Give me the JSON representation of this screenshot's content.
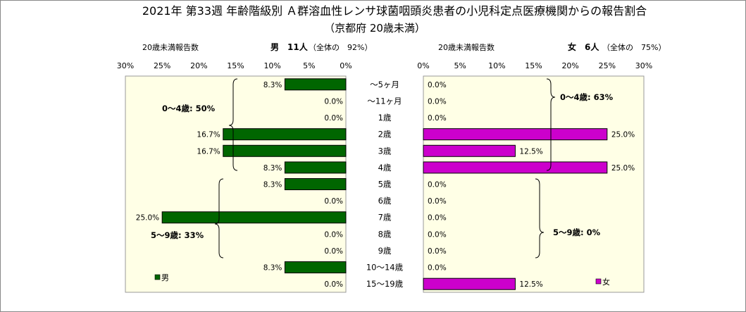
{
  "title": "2021年 第33週 年齢階級別 Ａ群溶血性レンサ球菌咽頭炎患者の小児科定点医療機関からの報告割合",
  "subtitle": "（京都府 20歳未満）",
  "categories": [
    "～5ヶ月",
    "～11ヶ月",
    "1歳",
    "2歳",
    "3歳",
    "4歳",
    "5歳",
    "6歳",
    "7歳",
    "8歳",
    "9歳",
    "10～14歳",
    "15～19歳"
  ],
  "male": {
    "header_label": "20歳未満報告数",
    "header_count": "男　11人",
    "header_share": "（全体の　92%）",
    "legend": "男",
    "color": "#006600",
    "values": [
      8.3,
      0,
      0,
      16.7,
      16.7,
      8.3,
      8.3,
      0,
      25.0,
      0,
      0,
      8.3,
      0
    ],
    "value_labels": [
      "8.3%",
      "0.0%",
      "0.0%",
      "16.7%",
      "16.7%",
      "8.3%",
      "8.3%",
      "0.0%",
      "25.0%",
      "0.0%",
      "0.0%",
      "8.3%",
      "0.0%"
    ],
    "group_0_4": "0～4歳: 50%",
    "group_5_9": "5～9歳: 33%"
  },
  "female": {
    "header_label": "20歳未満報告数",
    "header_count": "女　6人",
    "header_share": "（全体の　75%）",
    "legend": "女",
    "color": "#cc00cc",
    "values": [
      0,
      0,
      0,
      25.0,
      12.5,
      25.0,
      0,
      0,
      0,
      0,
      0,
      0,
      12.5
    ],
    "value_labels": [
      "0.0%",
      "0.0%",
      "0.0%",
      "25.0%",
      "12.5%",
      "25.0%",
      "0.0%",
      "0.0%",
      "0.0%",
      "0.0%",
      "0.0%",
      "0.0%",
      "12.5%"
    ],
    "group_0_4": "0～4歳: 63%",
    "group_5_9": "5～9歳: 0%"
  },
  "chart_data": {
    "type": "bar",
    "orientation": "horizontal",
    "categories": [
      "～5ヶ月",
      "～11ヶ月",
      "1歳",
      "2歳",
      "3歳",
      "4歳",
      "5歳",
      "6歳",
      "7歳",
      "8歳",
      "9歳",
      "10～14歳",
      "15～19歳"
    ],
    "series": [
      {
        "name": "男",
        "values": [
          8.3,
          0,
          0,
          16.7,
          16.7,
          8.3,
          8.3,
          0,
          25.0,
          0,
          0,
          8.3,
          0
        ]
      },
      {
        "name": "女",
        "values": [
          0,
          0,
          0,
          25.0,
          12.5,
          25.0,
          0,
          0,
          0,
          0,
          0,
          0,
          12.5
        ]
      }
    ],
    "xlim": [
      0,
      30
    ],
    "xticks": [
      "0%",
      "5%",
      "10%",
      "15%",
      "20%",
      "25%",
      "30%"
    ],
    "male_axis_reversed": true,
    "plot_background": "#ffffe6",
    "legend_placement": "bottom-left / bottom-right"
  }
}
